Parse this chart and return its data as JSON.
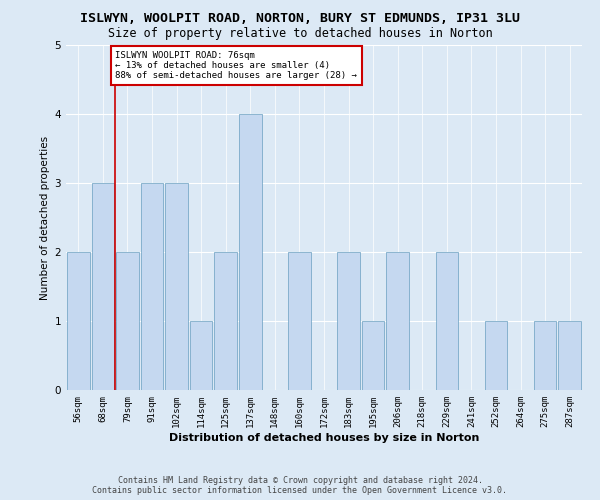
{
  "title": "ISLWYN, WOOLPIT ROAD, NORTON, BURY ST EDMUNDS, IP31 3LU",
  "subtitle": "Size of property relative to detached houses in Norton",
  "xlabel": "Distribution of detached houses by size in Norton",
  "ylabel": "Number of detached properties",
  "categories": [
    "56sqm",
    "68sqm",
    "79sqm",
    "91sqm",
    "102sqm",
    "114sqm",
    "125sqm",
    "137sqm",
    "148sqm",
    "160sqm",
    "172sqm",
    "183sqm",
    "195sqm",
    "206sqm",
    "218sqm",
    "229sqm",
    "241sqm",
    "252sqm",
    "264sqm",
    "275sqm",
    "287sqm"
  ],
  "values": [
    2,
    3,
    2,
    3,
    3,
    1,
    2,
    4,
    0,
    2,
    0,
    2,
    1,
    2,
    0,
    2,
    0,
    1,
    0,
    1,
    1
  ],
  "bar_color": "#c5d8f0",
  "bar_edgecolor": "#6a9fc0",
  "background_color": "#dce9f5",
  "grid_color": "#ffffff",
  "red_line_x": 1.5,
  "annotation_box_text": "ISLWYN WOOLPIT ROAD: 76sqm\n← 13% of detached houses are smaller (4)\n88% of semi-detached houses are larger (28) →",
  "annotation_box_color": "#ffffff",
  "annotation_box_edgecolor": "#cc0000",
  "footer_line1": "Contains HM Land Registry data © Crown copyright and database right 2024.",
  "footer_line2": "Contains public sector information licensed under the Open Government Licence v3.0.",
  "ylim": [
    0,
    5
  ],
  "yticks": [
    0,
    1,
    2,
    3,
    4,
    5
  ],
  "title_fontsize": 9.5,
  "subtitle_fontsize": 8.5,
  "xlabel_fontsize": 8,
  "ylabel_fontsize": 7.5,
  "tick_fontsize": 6.5,
  "annot_fontsize": 6.5,
  "footer_fontsize": 6.0
}
